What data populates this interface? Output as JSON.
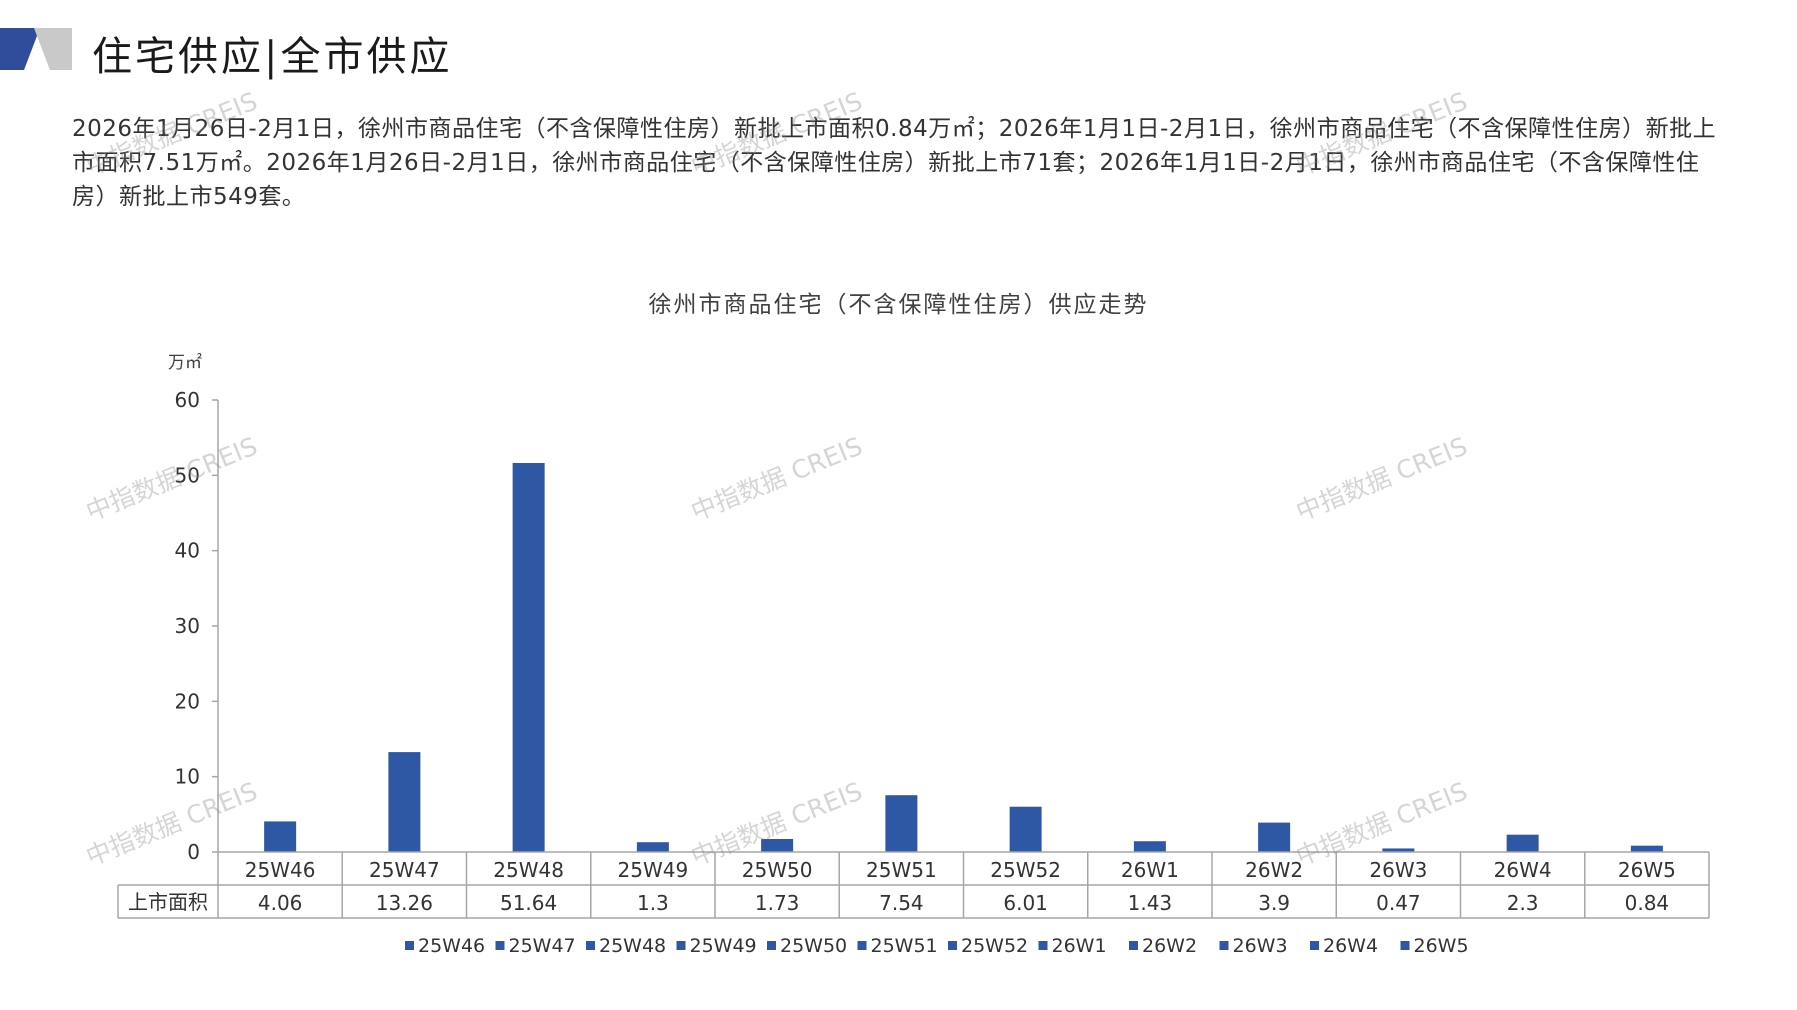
{
  "header": {
    "title": "住宅供应|全市供应"
  },
  "summary": "2026年1月26日-2月1日，徐州市商品住宅（不含保障性住房）新批上市面积0.84万㎡；2026年1月1日-2月1日，徐州市商品住宅（不含保障性住房）新批上市面积7.51万㎡。2026年1月26日-2月1日，徐州市商品住宅（不含保障性住房）新批上市71套；2026年1月1日-2月1日，徐州市商品住宅（不含保障性住房）新批上市549套。",
  "watermark": "中指数据 CREIS",
  "colors": {
    "bar": "#2e57a4",
    "axis": "#a6a6a6",
    "logo_dark": "#2f4d9a",
    "logo_light": "#c9c9c9"
  },
  "chart_data": {
    "type": "bar",
    "title": "徐州市商品住宅（不含保障性住房）供应走势",
    "ylabel": "万㎡",
    "ylim": [
      0,
      60
    ],
    "yticks": [
      0,
      10,
      20,
      30,
      40,
      50,
      60
    ],
    "categories": [
      "25W46",
      "25W47",
      "25W48",
      "25W49",
      "25W50",
      "25W51",
      "25W52",
      "26W1",
      "26W2",
      "26W3",
      "26W4",
      "26W5"
    ],
    "series": [
      {
        "name": "上市面积",
        "values": [
          4.06,
          13.26,
          51.64,
          1.3,
          1.73,
          7.54,
          6.01,
          1.43,
          3.9,
          0.47,
          2.3,
          0.84
        ]
      }
    ],
    "table_values": [
      "4.06",
      "13.26",
      "51.64",
      "1.3",
      "1.73",
      "7.54",
      "6.01",
      "1.43",
      "3.9",
      "0.47",
      "2.3",
      "0.84"
    ],
    "legend": [
      "25W46",
      "25W47",
      "25W48",
      "25W49",
      "25W50",
      "25W51",
      "25W52",
      "26W1",
      "26W2",
      "26W3",
      "26W4",
      "26W5"
    ],
    "legend_position": "bottom",
    "grid": false
  }
}
